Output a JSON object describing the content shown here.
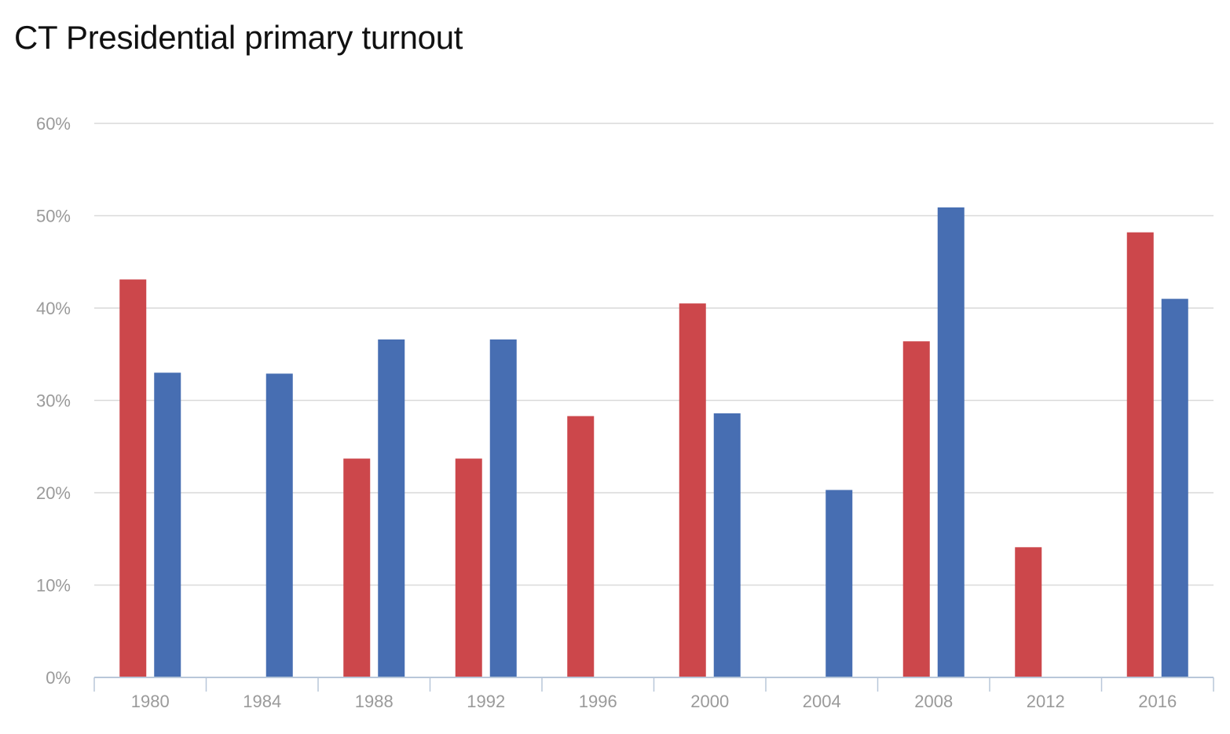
{
  "chart_data": {
    "type": "bar",
    "title": "CT Presidential primary turnout",
    "xlabel": "",
    "ylabel": "",
    "ylim": [
      0,
      60
    ],
    "yticks": [
      0,
      10,
      20,
      30,
      40,
      50,
      60
    ],
    "ytick_format": "%",
    "grid": true,
    "categories": [
      "1980",
      "1984",
      "1988",
      "1992",
      "1996",
      "2000",
      "2004",
      "2008",
      "2012",
      "2016"
    ],
    "series": [
      {
        "color": "#CC474B",
        "values": [
          43.1,
          null,
          23.7,
          23.7,
          28.3,
          40.5,
          null,
          36.4,
          14.1,
          48.2
        ]
      },
      {
        "color": "#476EB2",
        "values": [
          33.0,
          32.9,
          36.6,
          36.6,
          null,
          28.6,
          20.3,
          50.9,
          null,
          41.0
        ]
      }
    ],
    "colors": {
      "grid": "#d9d9d9",
      "axis": "#b8c7d9",
      "tick_text": "#9a9a9a"
    }
  }
}
